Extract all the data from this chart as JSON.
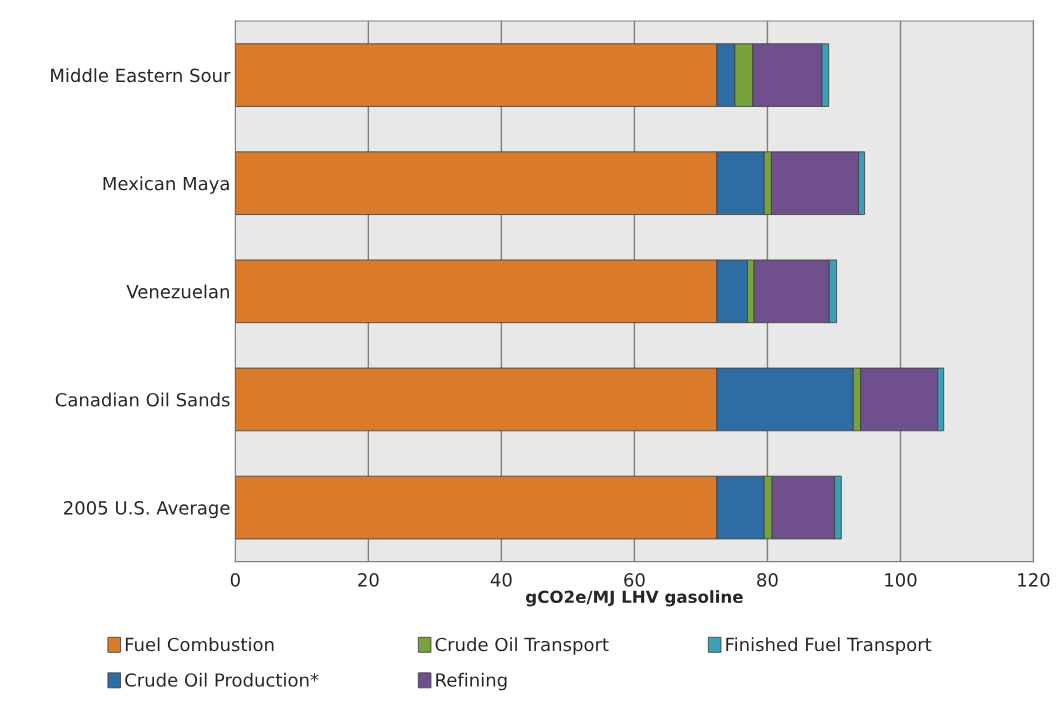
{
  "chart_data": {
    "type": "bar",
    "orientation": "horizontal",
    "stacked": true,
    "xlabel": "gCO2e/MJ LHV gasoline",
    "categories": [
      "Middle Eastern Sour",
      "Mexican Maya",
      "Venezuelan",
      "Canadian Oil Sands",
      "2005 U.S. Average"
    ],
    "series": [
      {
        "name": "Fuel Combustion",
        "color": "#d97b2b",
        "values": [
          72.4,
          72.4,
          72.4,
          72.4,
          72.4
        ]
      },
      {
        "name": "Crude Oil Production*",
        "color": "#2e6da4",
        "values": [
          2.7,
          7.1,
          4.6,
          20.5,
          7.1
        ]
      },
      {
        "name": "Crude Oil Transport",
        "color": "#77a23c",
        "values": [
          2.7,
          1.1,
          1.0,
          1.1,
          1.2
        ]
      },
      {
        "name": "Refining",
        "color": "#6f4f8c",
        "values": [
          10.4,
          13.1,
          11.3,
          11.6,
          9.4
        ]
      },
      {
        "name": "Finished Fuel Transport",
        "color": "#3aa0b7",
        "values": [
          1.0,
          0.9,
          1.1,
          0.9,
          1.0
        ]
      }
    ],
    "xlim": [
      0,
      120
    ],
    "xticks": [
      0,
      20,
      40,
      60,
      80,
      100,
      120
    ],
    "grid": "x",
    "legend": "bottom"
  }
}
